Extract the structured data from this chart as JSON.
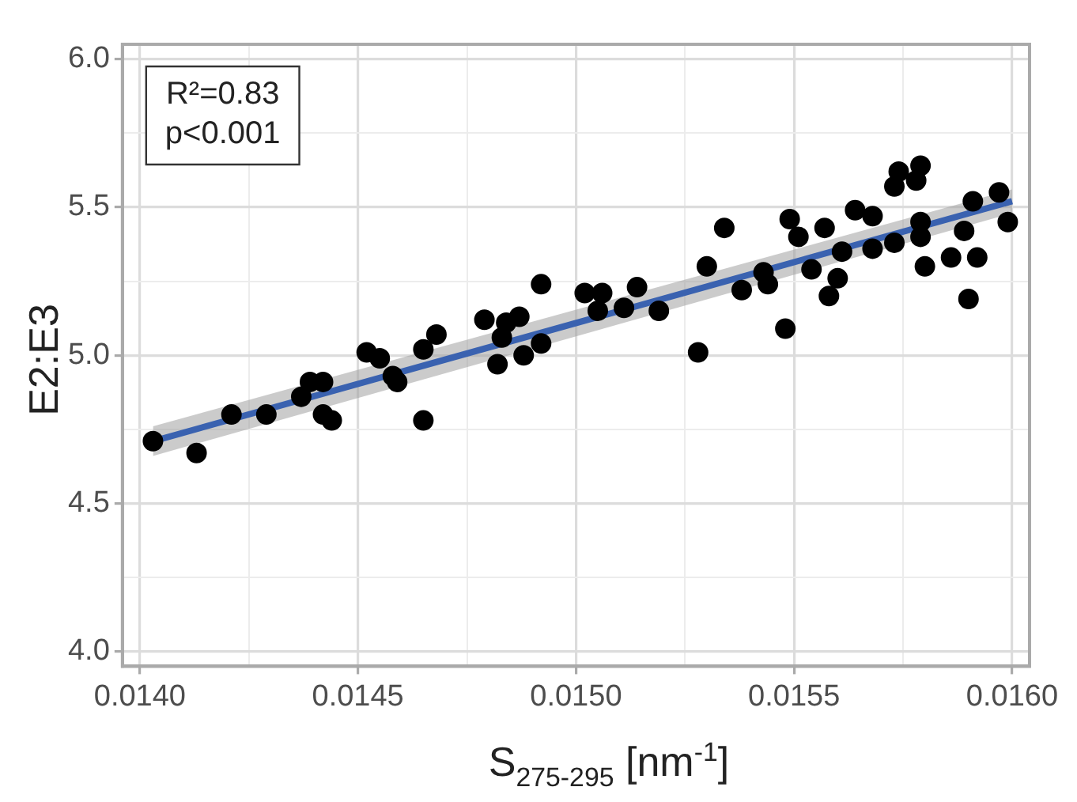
{
  "chart_data": {
    "type": "scatter",
    "xlabel": "S$_{275-295}$ [nm$^{-1}$]",
    "ylabel": "E2:E3",
    "annotations": [
      "R²=0.83",
      "p<0.001"
    ],
    "xlim": [
      0.01396,
      0.01604
    ],
    "ylim": [
      3.95,
      6.05
    ],
    "xticks": [
      {
        "value": 0.014,
        "label": "0.0140"
      },
      {
        "value": 0.01425,
        "label": null
      },
      {
        "value": 0.0145,
        "label": "0.0145"
      },
      {
        "value": 0.01475,
        "label": null
      },
      {
        "value": 0.015,
        "label": "0.0150"
      },
      {
        "value": 0.01525,
        "label": null
      },
      {
        "value": 0.0155,
        "label": "0.0155"
      },
      {
        "value": 0.01575,
        "label": null
      },
      {
        "value": 0.016,
        "label": "0.0160"
      }
    ],
    "yticks": [
      {
        "value": 4.0,
        "label": "4.0"
      },
      {
        "value": 4.25,
        "label": null
      },
      {
        "value": 4.5,
        "label": "4.5"
      },
      {
        "value": 4.75,
        "label": null
      },
      {
        "value": 5.0,
        "label": "5.0"
      },
      {
        "value": 5.25,
        "label": null
      },
      {
        "value": 5.5,
        "label": "5.5"
      },
      {
        "value": 5.75,
        "label": null
      },
      {
        "value": 6.0,
        "label": "6.0"
      }
    ],
    "grid": true,
    "legend": false,
    "marker": "circle",
    "series": [
      {
        "color": "#000000",
        "x": [
          0.01403,
          0.01413,
          0.01421,
          0.01429,
          0.01437,
          0.01439,
          0.01442,
          0.01442,
          0.01444,
          0.01452,
          0.01455,
          0.01458,
          0.01459,
          0.01465,
          0.01465,
          0.01468,
          0.01479,
          0.01484,
          0.01487,
          0.01483,
          0.01482,
          0.01488,
          0.01492,
          0.01492,
          0.01502,
          0.01506,
          0.01505,
          0.01511,
          0.01514,
          0.01519,
          0.01528,
          0.0153,
          0.01534,
          0.01538,
          0.01543,
          0.01544,
          0.01548,
          0.01549,
          0.01551,
          0.01554,
          0.01557,
          0.01558,
          0.0156,
          0.01561,
          0.01564,
          0.01568,
          0.01568,
          0.01573,
          0.01573,
          0.01574,
          0.01578,
          0.01579,
          0.01579,
          0.01579,
          0.0158,
          0.01586,
          0.01589,
          0.0159,
          0.01591,
          0.01592,
          0.01597,
          0.01599
        ],
        "values": [
          4.71,
          4.67,
          4.8,
          4.8,
          4.86,
          4.91,
          4.91,
          4.8,
          4.78,
          5.01,
          4.99,
          4.93,
          4.91,
          4.78,
          5.02,
          5.07,
          5.12,
          5.11,
          5.13,
          5.06,
          4.97,
          5.0,
          5.04,
          5.24,
          5.21,
          5.21,
          5.15,
          5.16,
          5.23,
          5.15,
          5.01,
          5.3,
          5.43,
          5.22,
          5.28,
          5.24,
          5.09,
          5.46,
          5.4,
          5.29,
          5.43,
          5.2,
          5.26,
          5.35,
          5.49,
          5.47,
          5.36,
          5.38,
          5.57,
          5.62,
          5.59,
          5.64,
          5.45,
          5.4,
          5.3,
          5.33,
          5.42,
          5.19,
          5.52,
          5.33,
          5.55,
          5.45
        ]
      },
      {
        "type": "line",
        "color": "#3a62b0",
        "marker": "none",
        "x": [
          0.01403,
          0.016
        ],
        "values": [
          4.71,
          5.52
        ],
        "lower": [
          4.66,
          5.48
        ],
        "upper": [
          4.76,
          5.56
        ]
      }
    ]
  }
}
